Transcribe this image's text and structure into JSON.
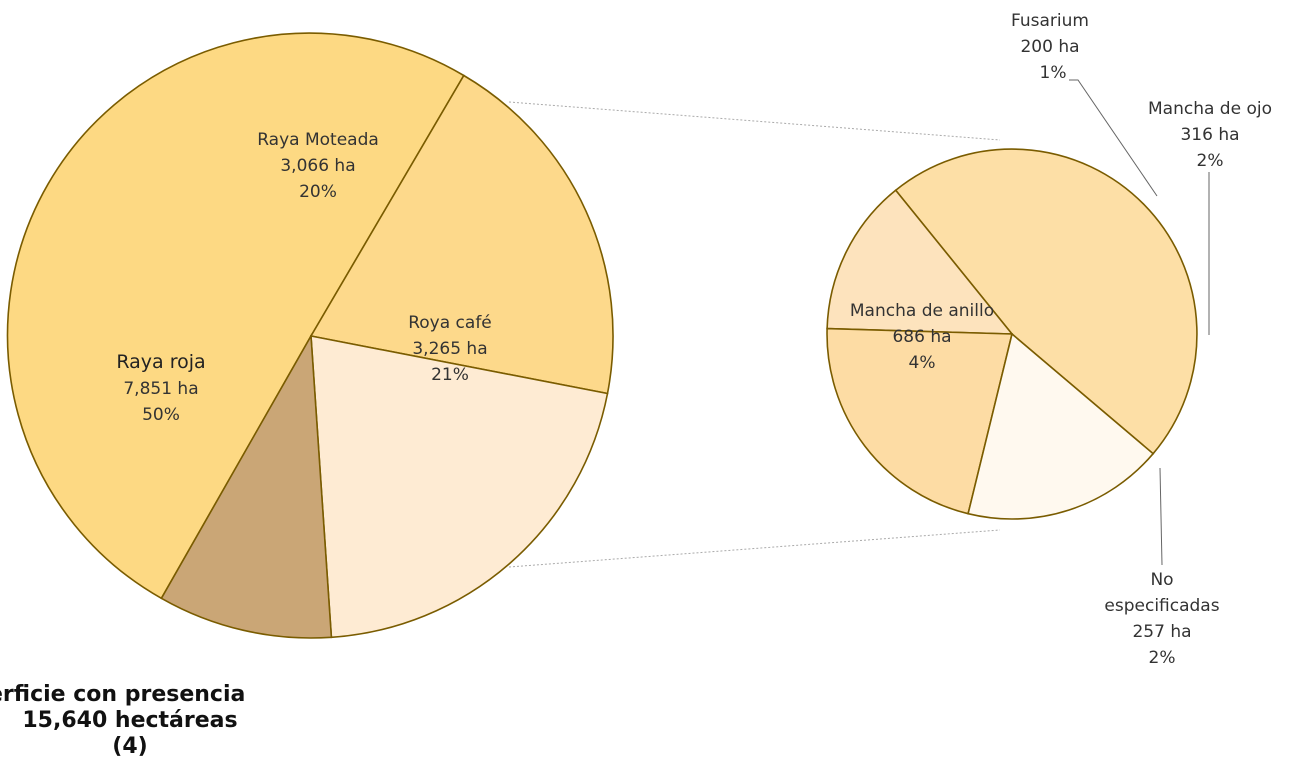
{
  "chart_data": {
    "type": "pie",
    "main_pie": {
      "slices": [
        {
          "name": "Raya roja",
          "area_label": "7,851 ha",
          "pct_label": "50%",
          "value": 7851,
          "color": "#fdd983"
        },
        {
          "name": "Raya Moteada",
          "area_label": "3,066 ha",
          "pct_label": "20%",
          "value": 3066,
          "color": "#fdd98b"
        },
        {
          "name": "Roya café",
          "area_label": "3,265 ha",
          "pct_label": "21%",
          "value": 3265,
          "color": "#feebd3"
        },
        {
          "name": "",
          "area_label": "",
          "pct_label": "",
          "value": 1459,
          "color": "#caa676"
        }
      ]
    },
    "detail_pie": {
      "slices": [
        {
          "name": "Mancha de anillo",
          "area_label": "686 ha",
          "pct_label": "4%",
          "value": 686,
          "color": "#fddfa6"
        },
        {
          "name": "Fusarium",
          "area_label": "200 ha",
          "pct_label": "1%",
          "value": 200,
          "color": "#fde3bd"
        },
        {
          "name": "Mancha de ojo",
          "area_label": "316 ha",
          "pct_label": "2%",
          "value": 316,
          "color": "#fddca4"
        },
        {
          "name": "No especificadas",
          "area_label": "257 ha",
          "pct_label": "2%",
          "value": 257,
          "color": "#fff9ef"
        }
      ]
    },
    "caption": {
      "line1": "erficie con presencia",
      "line2": "15,640 hectáreas",
      "line3": "(4)"
    },
    "stroke_color": "#7a5c00",
    "connector_color": "#aaaaaa"
  }
}
